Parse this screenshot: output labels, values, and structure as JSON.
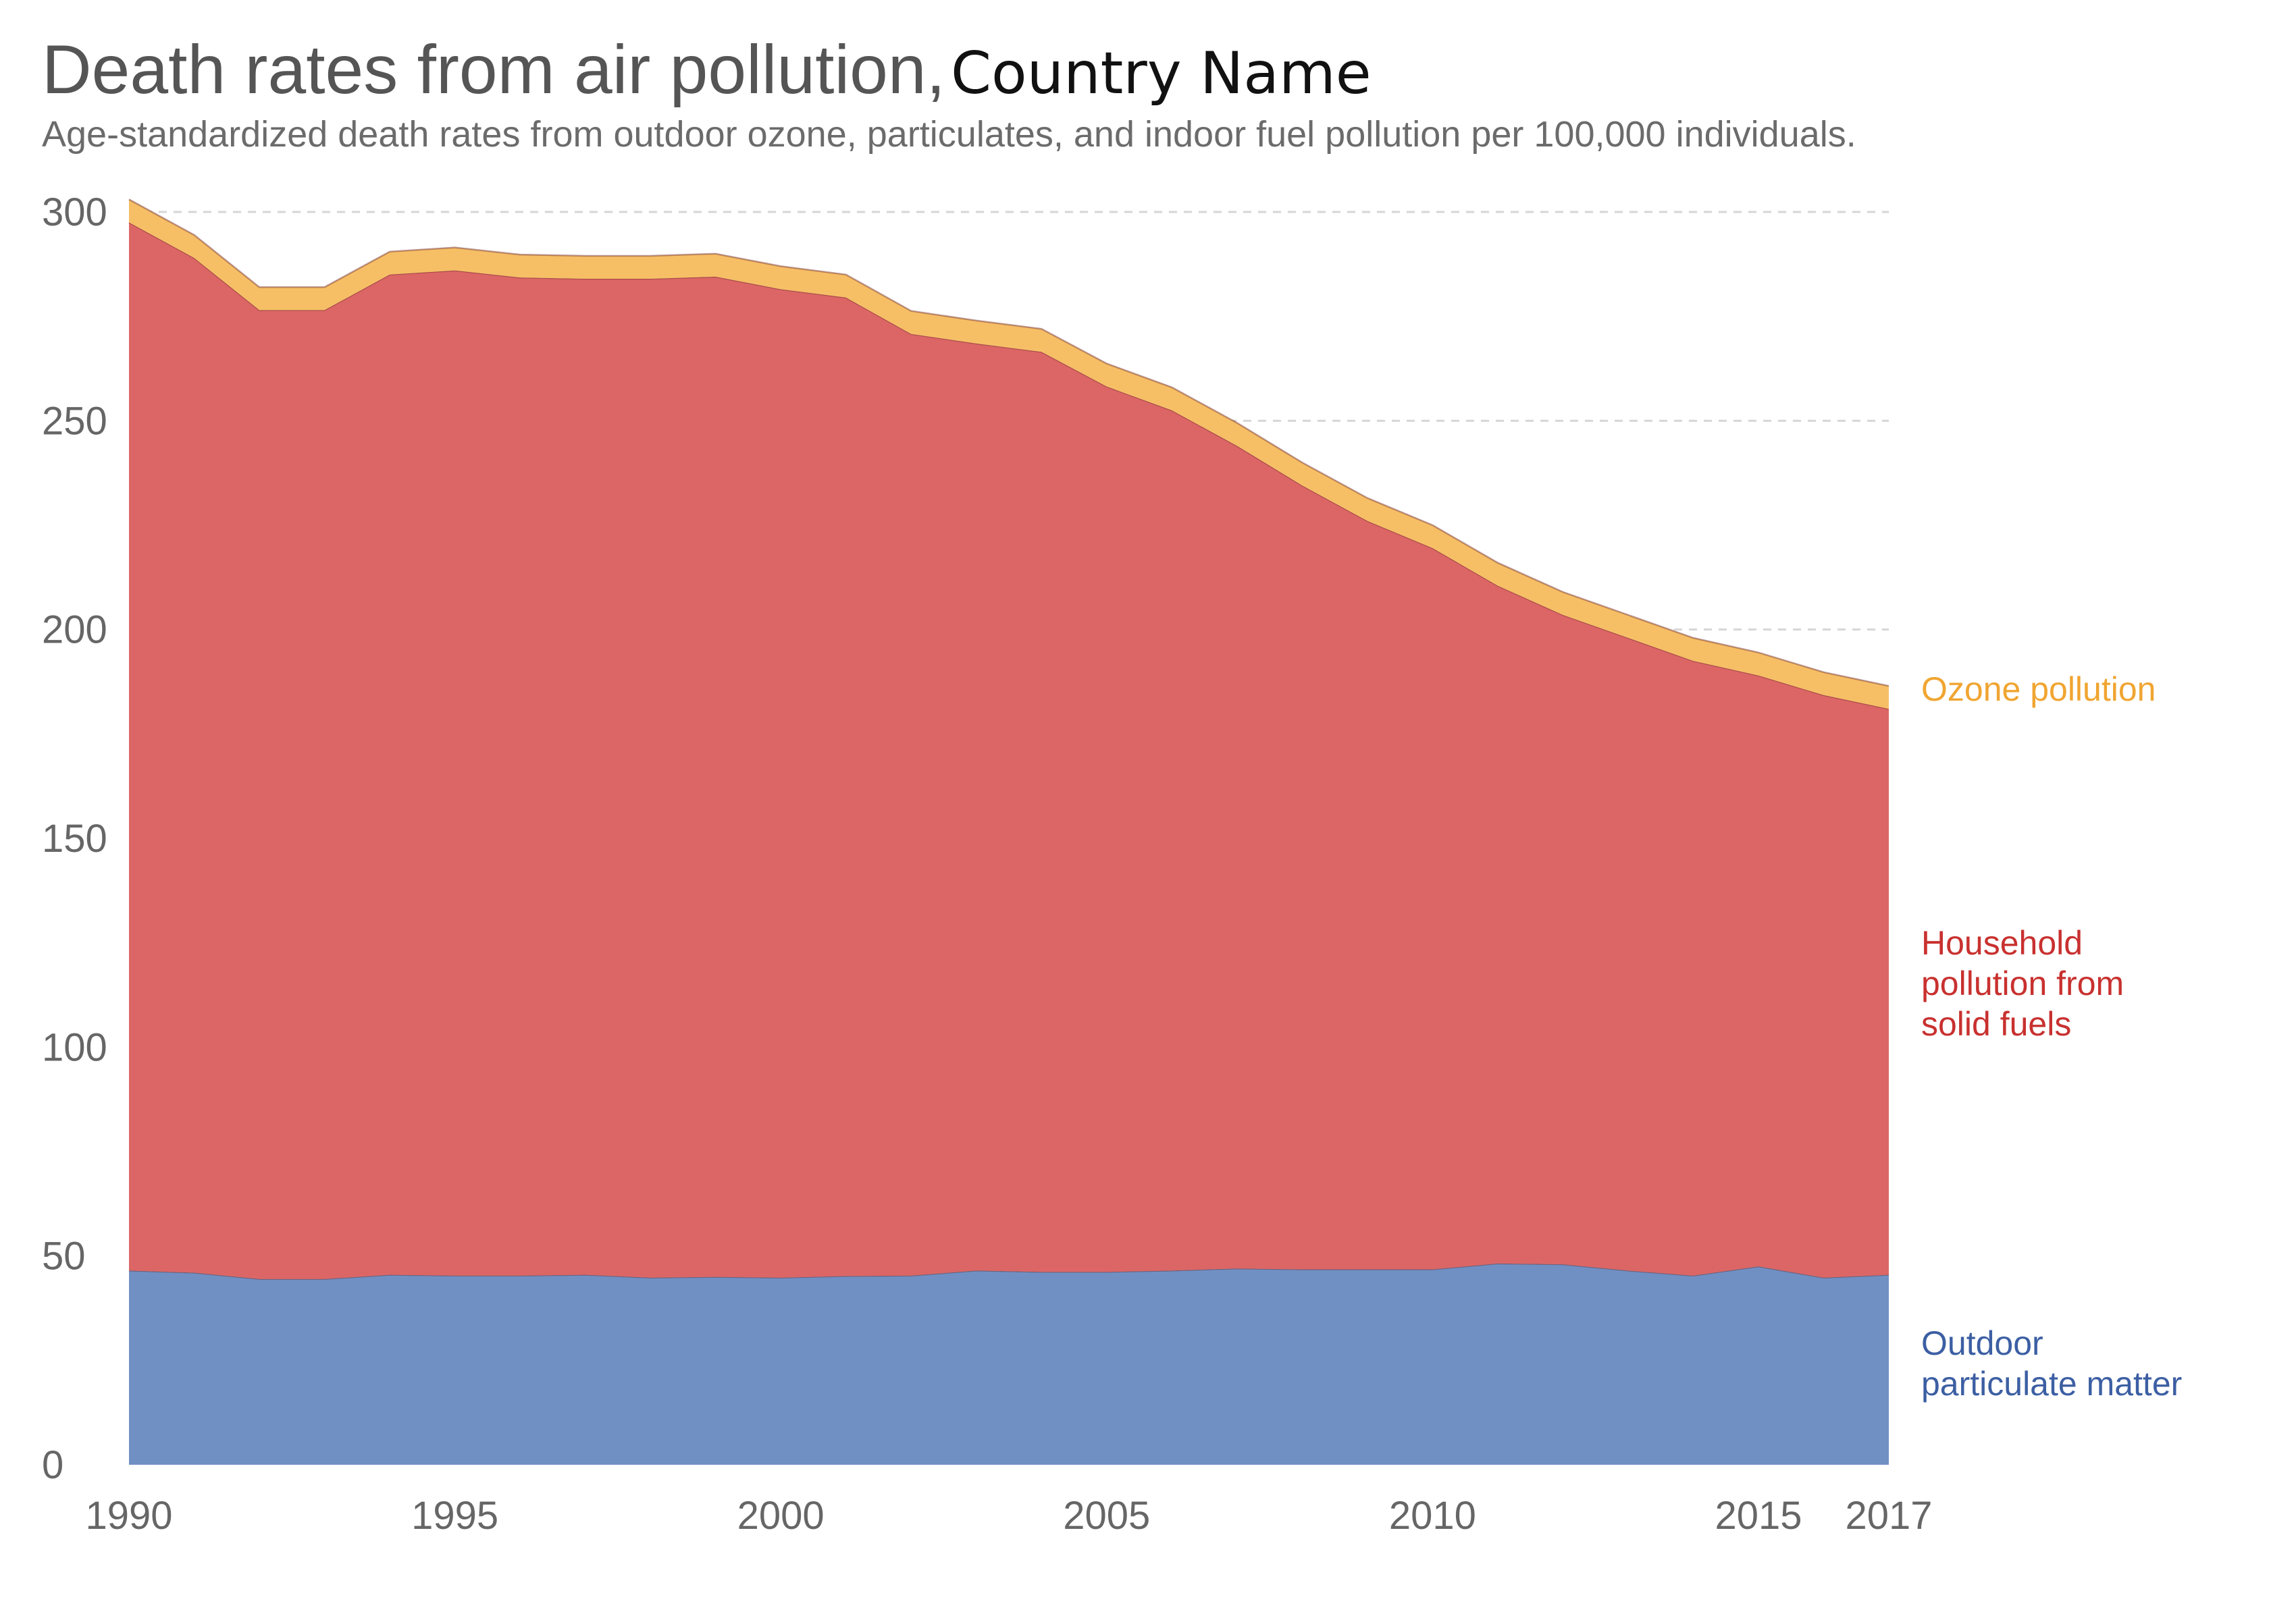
{
  "title": "Death rates from air pollution,",
  "title_country": "Country Name",
  "subtitle": "Age-standardized death rates from outdoor ozone, particulates, and indoor fuel pollution per 100,000 individuals.",
  "chart_data": {
    "type": "area",
    "stacked": true,
    "title": "Death rates from air pollution, Country Name",
    "subtitle": "Age-standardized death rates from outdoor ozone, particulates, and indoor fuel pollution per 100,000 individuals.",
    "xlabel": "",
    "ylabel": "",
    "xlim": [
      1990,
      2017
    ],
    "ylim": [
      0,
      300
    ],
    "grid": true,
    "legend": "inline-right",
    "x": [
      1990,
      1991,
      1992,
      1993,
      1994,
      1995,
      1996,
      1997,
      1998,
      1999,
      2000,
      2001,
      2002,
      2003,
      2004,
      2005,
      2006,
      2007,
      2008,
      2009,
      2010,
      2011,
      2012,
      2013,
      2014,
      2015,
      2016,
      2017
    ],
    "x_ticks": [
      "1990",
      "1995",
      "2000",
      "2005",
      "2010",
      "2015",
      "2017"
    ],
    "x_tick_values": [
      1990,
      1995,
      2000,
      2005,
      2010,
      2015,
      2017
    ],
    "y_ticks": [
      "0",
      "50",
      "100",
      "150",
      "200",
      "250",
      "300"
    ],
    "y_tick_values": [
      0,
      50,
      100,
      150,
      200,
      250,
      300
    ],
    "series": [
      {
        "name": "Outdoor particulate matter",
        "label_lines": [
          "Outdoor",
          "particulate matter"
        ],
        "color": "#7090c4",
        "label_color": "#3c5fa3",
        "values": [
          46.5,
          46,
          44.5,
          44.5,
          45.5,
          45.3,
          45.3,
          45.5,
          44.8,
          45,
          44.8,
          45.2,
          45.3,
          46.5,
          46.2,
          46.2,
          46.5,
          47,
          46.8,
          46.8,
          46.8,
          48.2,
          48,
          46.5,
          45.3,
          47.5,
          44.8,
          45.5
        ]
      },
      {
        "name": "Household pollution from solid fuels",
        "label_lines": [
          "Household",
          "pollution from",
          "solid fuels"
        ],
        "color": "#dc6665",
        "label_color": "#c8312f",
        "values": [
          251,
          243,
          232,
          232,
          239.5,
          240.7,
          239,
          238.5,
          239.2,
          239.5,
          236.7,
          234.3,
          225.5,
          222,
          220.3,
          212,
          206,
          197,
          187.7,
          179.2,
          172.7,
          162.3,
          155.5,
          151.5,
          147.2,
          141.5,
          139.5,
          135.5
        ]
      },
      {
        "name": "Ozone pollution",
        "label_lines": [
          "Ozone pollution"
        ],
        "color": "#f6bf66",
        "label_color": "#f0a531",
        "values": [
          5.5,
          5.5,
          5.5,
          5.5,
          5.5,
          5.5,
          5.5,
          5.5,
          5.5,
          5.5,
          5.5,
          5.5,
          5.5,
          5.5,
          5.5,
          5.5,
          5.5,
          5.5,
          5.5,
          5.5,
          5.5,
          5.5,
          5.5,
          5.5,
          5.5,
          5.5,
          5.5,
          5.5
        ]
      }
    ]
  }
}
